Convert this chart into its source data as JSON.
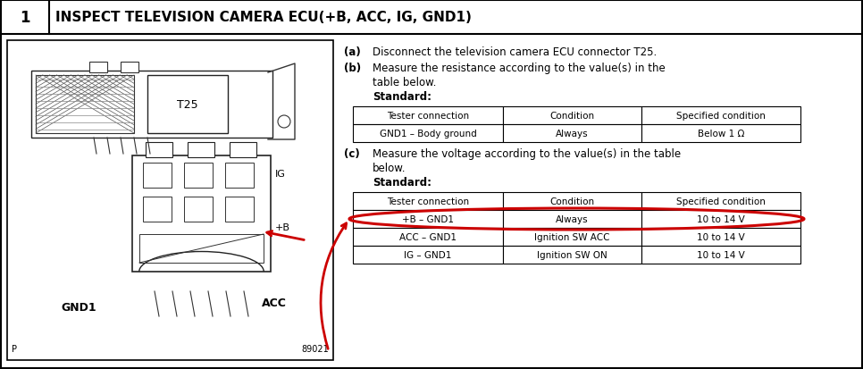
{
  "title_number": "1",
  "title_text": "INSPECT TELEVISION CAMERA ECU(+B, ACC, IG, GND1)",
  "step_a": "Disconnect the television camera ECU connector T25.",
  "step_b_line1": "Measure the resistance according to the value(s) in the",
  "step_b_line2": "table below.",
  "step_b_label": "Standard:",
  "table1_headers": [
    "Tester connection",
    "Condition",
    "Specified condition"
  ],
  "table1_rows": [
    [
      "GND1 – Body ground",
      "Always",
      "Below 1 Ω"
    ]
  ],
  "step_c_line1": "Measure the voltage according to the value(s) in the table",
  "step_c_line2": "below.",
  "step_c_label": "Standard:",
  "table2_headers": [
    "Tester connection",
    "Condition",
    "Specified condition"
  ],
  "table2_rows": [
    [
      "+B – GND1",
      "Always",
      "10 to 14 V"
    ],
    [
      "ACC – GND1",
      "Ignition SW ACC",
      "10 to 14 V"
    ],
    [
      "IG – GND1",
      "Ignition SW ON",
      "10 to 14 V"
    ]
  ],
  "highlighted_row": 0,
  "diagram_label_T25": "T25",
  "diagram_label_IG": "IG",
  "diagram_label_B": "+B",
  "diagram_label_GND1": "GND1",
  "diagram_label_ACC": "ACC",
  "diagram_label_P": "P",
  "diagram_label_num": "89021",
  "background_color": "#ffffff",
  "border_color": "#000000",
  "highlight_color": "#cc0000",
  "table_header_bg": "#ffffff"
}
